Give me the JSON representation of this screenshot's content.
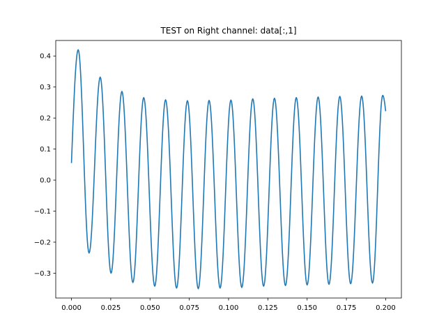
{
  "chart_data": {
    "type": "line",
    "title": "TEST on Right channel: data[:,1]",
    "xlabel": "",
    "ylabel": "",
    "xlim": [
      -0.01,
      0.21
    ],
    "ylim": [
      -0.38,
      0.45
    ],
    "grid": false,
    "x_ticks": [
      0.0,
      0.025,
      0.05,
      0.075,
      0.1,
      0.125,
      0.15,
      0.175,
      0.2
    ],
    "x_tick_labels": [
      "0.000",
      "0.025",
      "0.050",
      "0.075",
      "0.100",
      "0.125",
      "0.150",
      "0.175",
      "0.200"
    ],
    "y_ticks": [
      -0.3,
      -0.2,
      -0.1,
      0.0,
      0.1,
      0.2,
      0.3,
      0.4
    ],
    "y_tick_labels": [
      "−0.3",
      "−0.2",
      "−0.1",
      "0.0",
      "0.1",
      "0.2",
      "0.3",
      "0.4"
    ],
    "series": [
      {
        "color": "#1f77b4",
        "x_start": 0.0,
        "x_end": 0.2,
        "start_value": 0.055,
        "end_value": 0.222,
        "extrema": [
          [
            0.0043,
            0.42
          ],
          [
            0.0112,
            -0.235
          ],
          [
            0.0183,
            0.332
          ],
          [
            0.0252,
            -0.3
          ],
          [
            0.0321,
            0.286
          ],
          [
            0.0391,
            -0.33
          ],
          [
            0.046,
            0.266
          ],
          [
            0.053,
            -0.342
          ],
          [
            0.0599,
            0.259
          ],
          [
            0.0669,
            -0.348
          ],
          [
            0.0738,
            0.256
          ],
          [
            0.0807,
            -0.35
          ],
          [
            0.0876,
            0.257
          ],
          [
            0.0946,
            -0.348
          ],
          [
            0.1015,
            0.258
          ],
          [
            0.1084,
            -0.346
          ],
          [
            0.1154,
            0.262
          ],
          [
            0.1223,
            -0.342
          ],
          [
            0.1292,
            0.264
          ],
          [
            0.1362,
            -0.34
          ],
          [
            0.1431,
            0.266
          ],
          [
            0.15,
            -0.338
          ],
          [
            0.157,
            0.268
          ],
          [
            0.1639,
            -0.336
          ],
          [
            0.1708,
            0.27
          ],
          [
            0.1777,
            -0.334
          ],
          [
            0.1847,
            0.271
          ],
          [
            0.1916,
            -0.332
          ],
          [
            0.1981,
            0.273
          ]
        ]
      }
    ]
  }
}
